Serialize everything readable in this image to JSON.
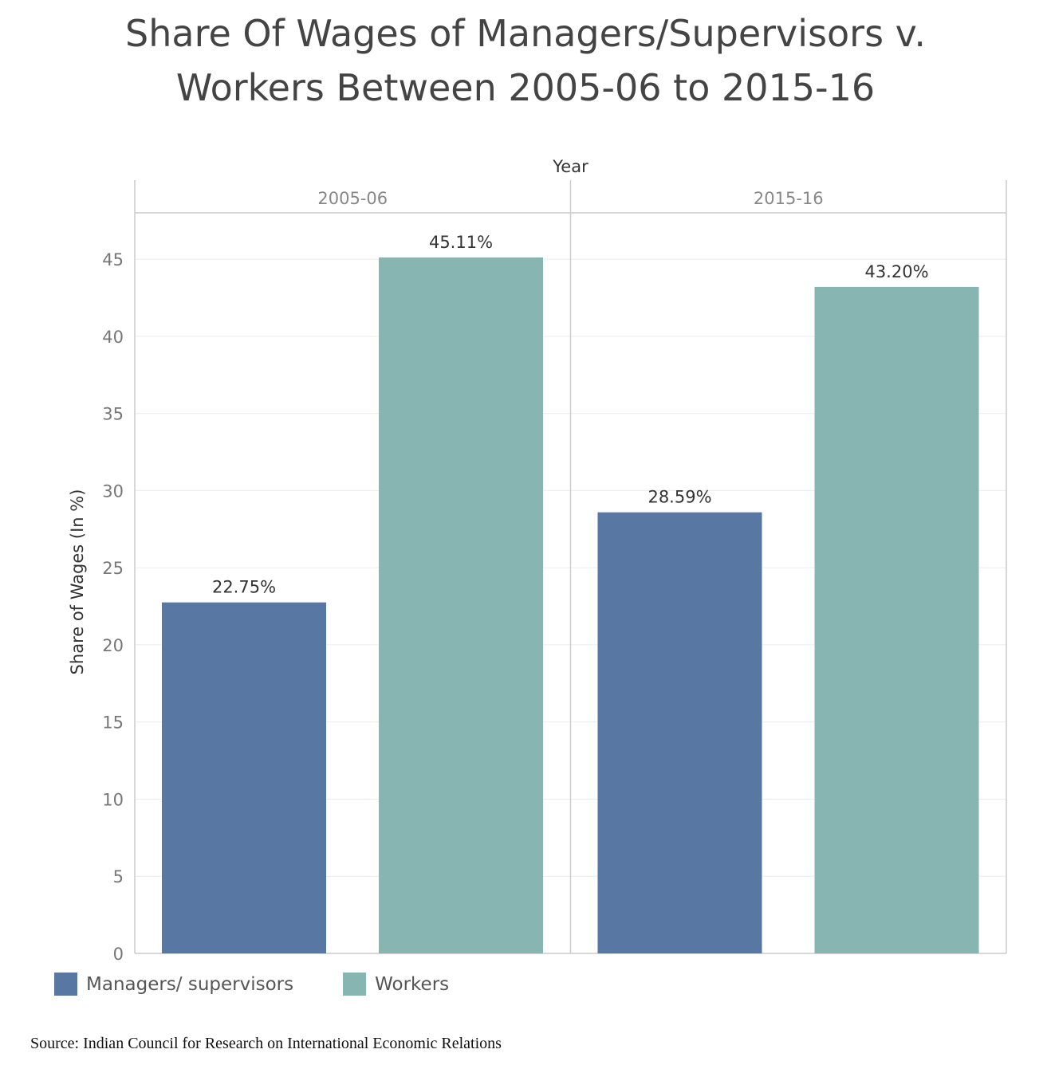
{
  "title_lines": [
    "Share Of Wages of Managers/Supervisors v.",
    "Workers Between 2005-06 to 2015-16"
  ],
  "source": "Source: Indian Council for Research on International Economic Relations",
  "chart_data": {
    "type": "bar",
    "facet_label": "Year",
    "categories": [
      "2005-06",
      "2015-16"
    ],
    "series": [
      {
        "name": "Managers/ supervisors",
        "values": [
          22.75,
          28.59
        ],
        "labels": [
          "22.75%",
          "28.59%"
        ],
        "color": "#5877a2"
      },
      {
        "name": "Workers",
        "values": [
          45.11,
          43.2
        ],
        "labels": [
          "45.11%",
          "43.20%"
        ],
        "color": "#87b5b2"
      }
    ],
    "ylabel": "Share of Wages (In %)",
    "ylim": [
      0,
      48
    ],
    "yticks": [
      0,
      5,
      10,
      15,
      20,
      25,
      30,
      35,
      40,
      45
    ],
    "grid": true,
    "legend_position": "bottom-left"
  }
}
